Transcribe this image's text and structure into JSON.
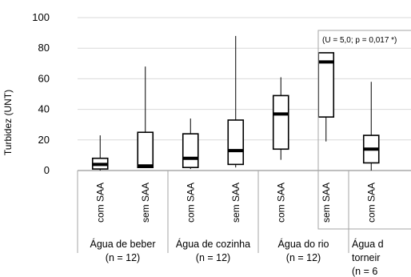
{
  "chart_data": {
    "type": "boxplot",
    "ylabel": "Turbidez (UNT)",
    "ylim": [
      0,
      100
    ],
    "yticks": [
      0,
      20,
      40,
      60,
      80,
      100
    ],
    "grid": true,
    "groups": [
      {
        "line1": "Água de beber",
        "line2": "(n = 12)"
      },
      {
        "line1": "Água de cozinha",
        "line2": "(n = 12)"
      },
      {
        "line1": "Água do rio",
        "line2": "(n = 12)"
      },
      {
        "line1": "Água d",
        "line2": "torneir",
        "line3": "(n = 6"
      }
    ],
    "boxes": [
      {
        "category": "com SAA",
        "group": 0,
        "min": 0,
        "q1": 1,
        "median": 4,
        "q3": 8,
        "max": 23
      },
      {
        "category": "sem SAA",
        "group": 0,
        "min": 2,
        "q1": 2,
        "median": 3,
        "q3": 25,
        "max": 68
      },
      {
        "category": "com SAA",
        "group": 1,
        "min": 1,
        "q1": 2,
        "median": 8,
        "q3": 24,
        "max": 34
      },
      {
        "category": "sem SAA",
        "group": 1,
        "min": 2,
        "q1": 4,
        "median": 13,
        "q3": 33,
        "max": 88
      },
      {
        "category": "com SAA",
        "group": 2,
        "min": 7,
        "q1": 14,
        "median": 37,
        "q3": 49,
        "max": 61
      },
      {
        "category": "sem SAA",
        "group": 2,
        "min": 19,
        "q1": 35,
        "median": 71,
        "q3": 77,
        "max": 77
      },
      {
        "category": "com SAA",
        "group": 3,
        "min": 0,
        "q1": 5,
        "median": 14,
        "q3": 23,
        "max": 58
      }
    ],
    "annotation": "(U = 5,0; p = 0,017 *)"
  }
}
